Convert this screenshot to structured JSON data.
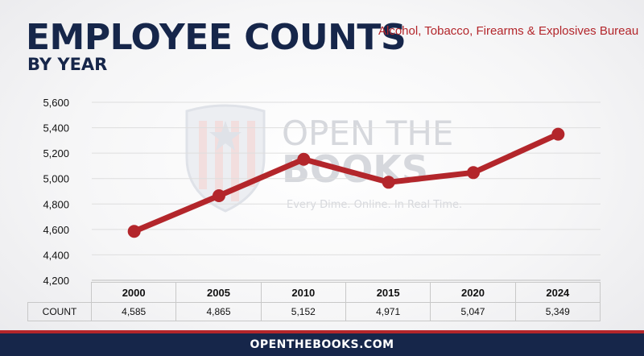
{
  "header": {
    "title": "EMPLOYEE COUNTS",
    "subtitle": "BY YEAR",
    "agency": "Alcohol, Tobacco, Firearms & Explosives Bureau"
  },
  "watermark": {
    "line1": "OPEN THE",
    "line2": "BOOKS",
    "tagline": "Every Dime. Online. In Real Time."
  },
  "chart_data": {
    "type": "line",
    "categories": [
      "2000",
      "2005",
      "2010",
      "2015",
      "2020",
      "2024"
    ],
    "values": [
      4585,
      4865,
      5152,
      4971,
      5047,
      5349
    ],
    "ylim": [
      4200,
      5600
    ],
    "yticks": [
      "5,600",
      "5,400",
      "5,200",
      "5,000",
      "4,800",
      "4,600",
      "4,400",
      "4,200"
    ],
    "grid": true,
    "line_color": "#b3262b"
  },
  "table": {
    "row_label": "COUNT",
    "values": [
      "4,585",
      "4,865",
      "5,152",
      "4,971",
      "5,047",
      "5,349"
    ]
  },
  "footer": {
    "site": "OPENTHEBOOKS.COM"
  },
  "colors": {
    "navy": "#16264a",
    "red": "#b3262b"
  }
}
